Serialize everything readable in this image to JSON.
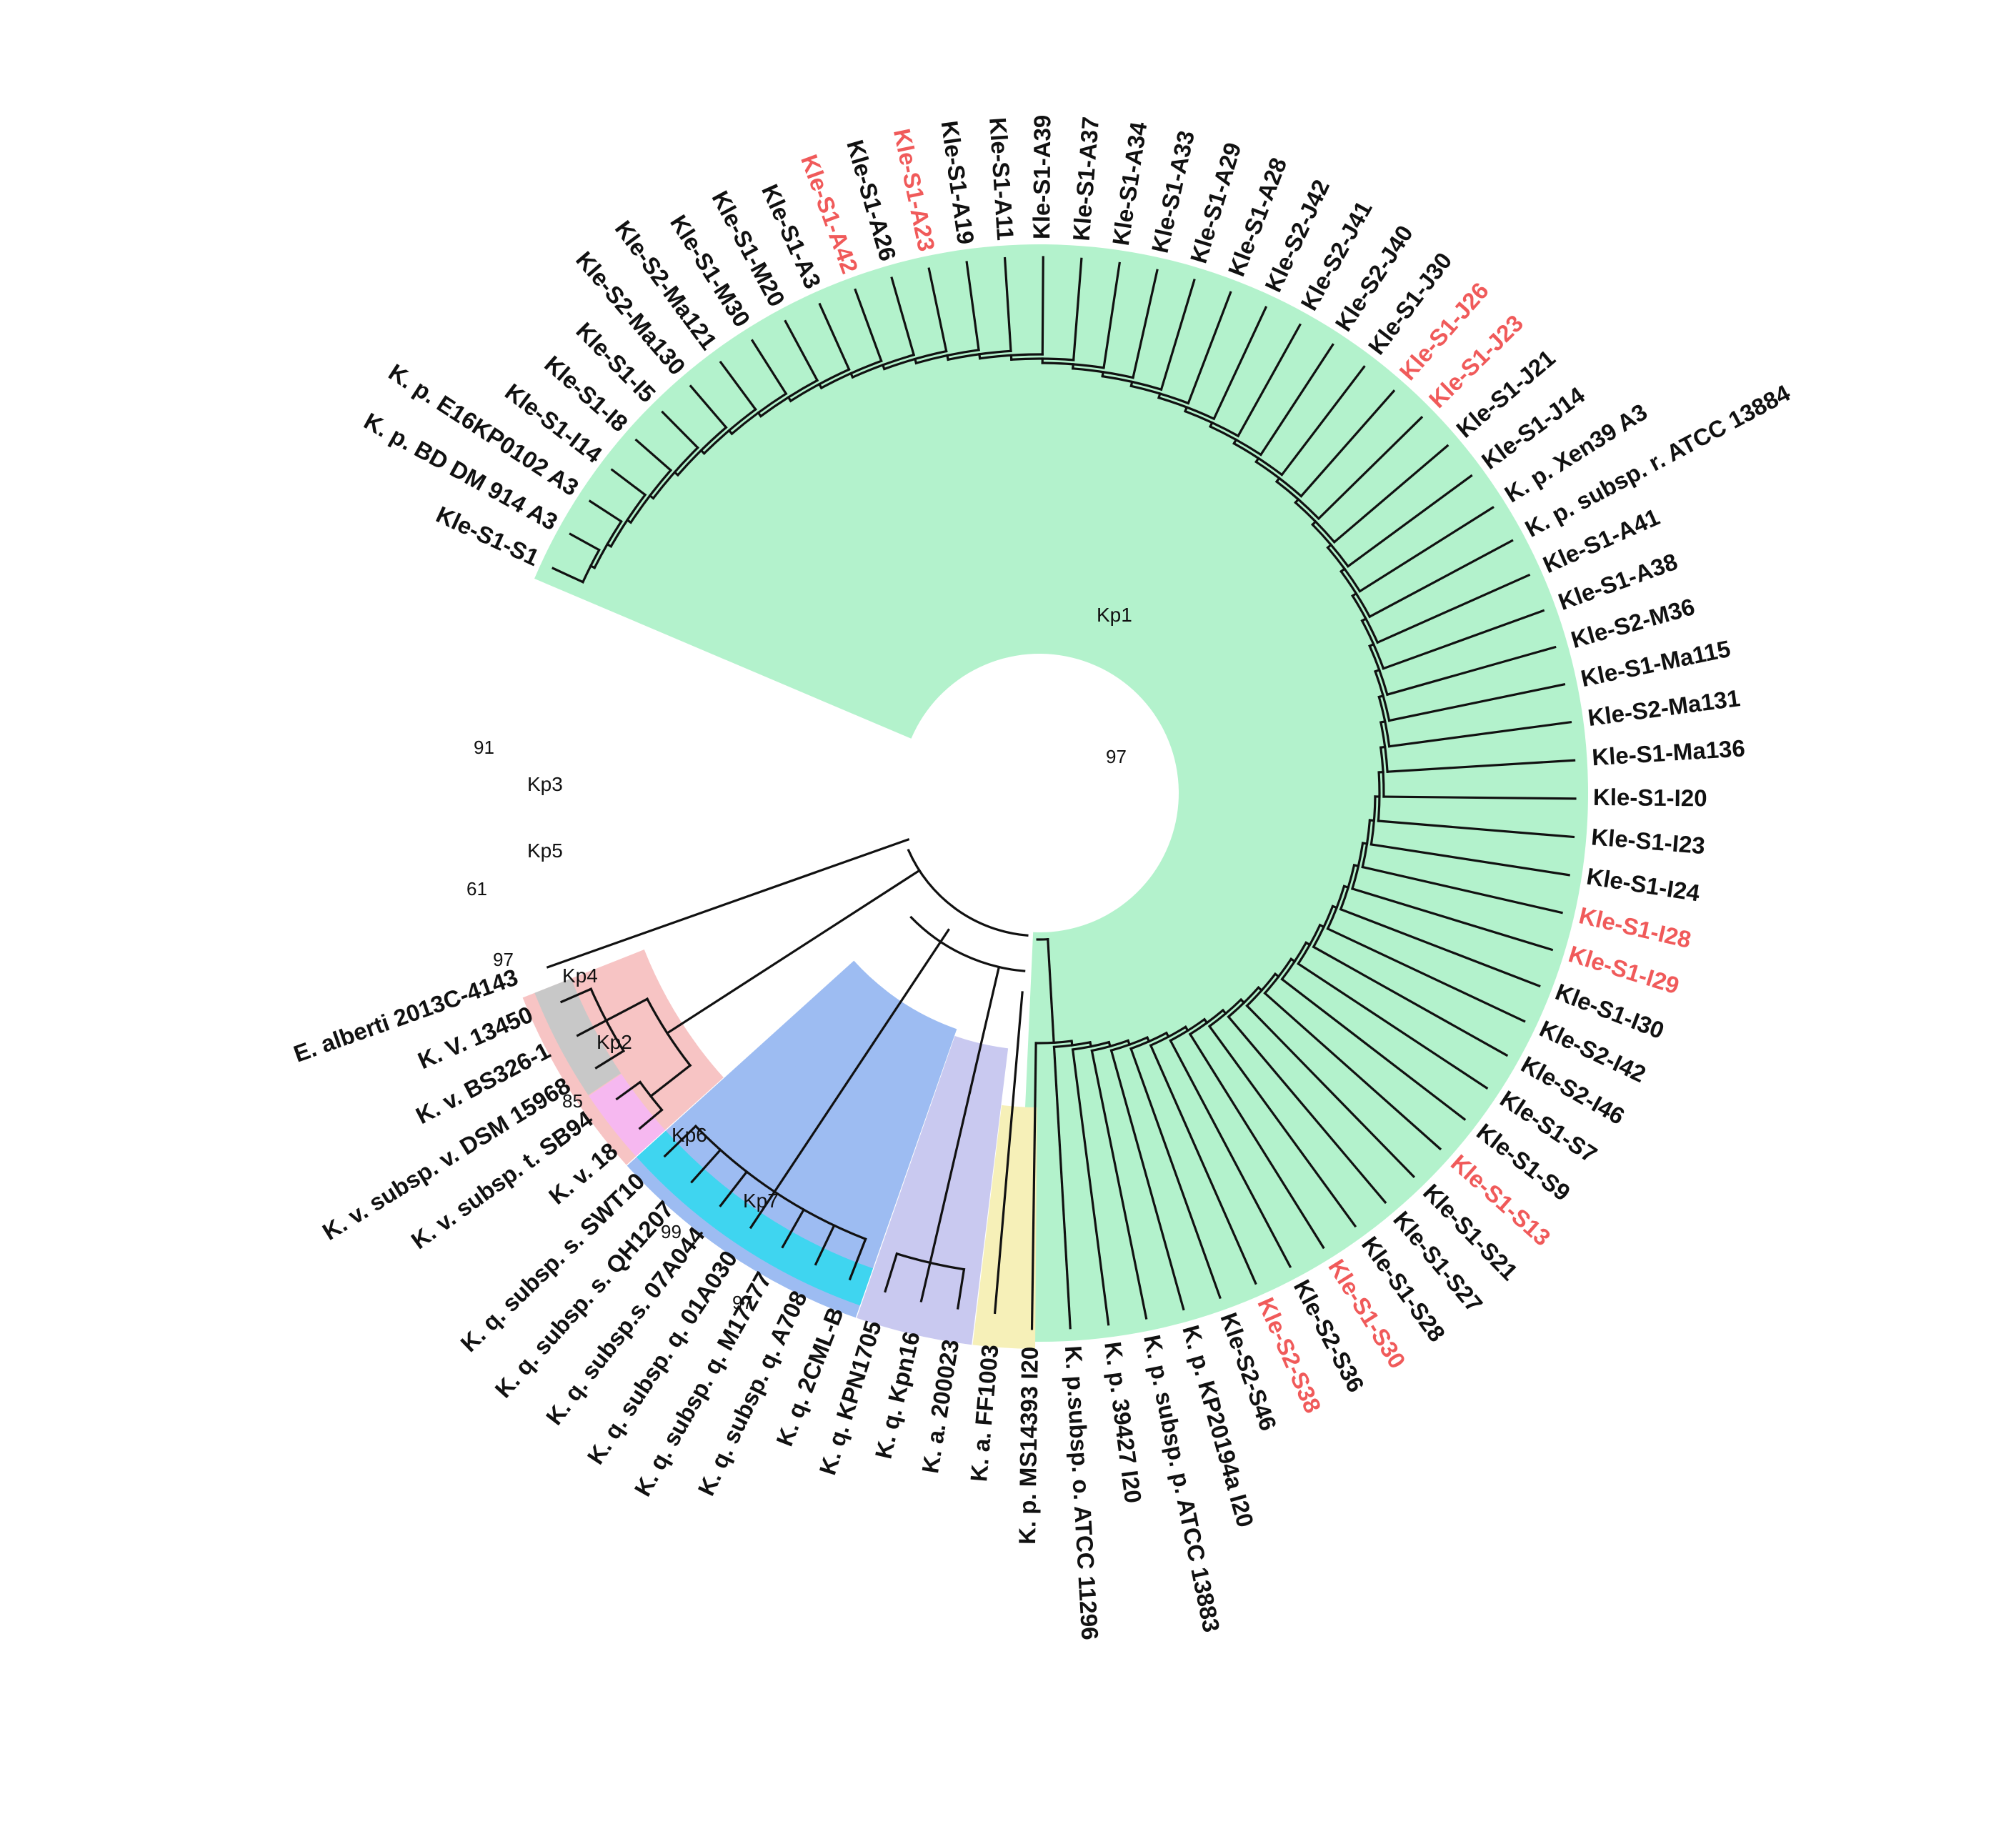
{
  "colors": {
    "highlight_text": "#f05a5a",
    "normal_text": "#111111",
    "branch": "#111111"
  },
  "clades": [
    {
      "label": "Kp1",
      "color": "#b3f2cc"
    },
    {
      "label": "Kp2",
      "color": "#9dbcf2"
    },
    {
      "label": "Kp3",
      "color": "#f7c4c4"
    },
    {
      "label": "Kp4",
      "color": "#9dbcf2"
    },
    {
      "label": "Kp5",
      "color": "#f7c4c4"
    },
    {
      "label": "Kp6",
      "color": "#c9c9f0"
    },
    {
      "label": "Kp7",
      "color": "#f6f0b8"
    }
  ],
  "bootstrap_values": [
    "97",
    "91",
    "61",
    "97",
    "85",
    "99",
    "97"
  ],
  "leaves": [
    {
      "label": "E. alberti 2013C-4143",
      "group": "outgroup",
      "highlight": false
    },
    {
      "label": "K. V. 13450",
      "group": "Kp3",
      "highlight": false
    },
    {
      "label": "K. v. BS326-1",
      "group": "Kp3",
      "highlight": false
    },
    {
      "label": "K. v. subsp. v. DSM 15968",
      "group": "Kp3",
      "highlight": false
    },
    {
      "label": "K. v. subsp. t. SB94",
      "group": "Kp5",
      "highlight": false
    },
    {
      "label": "K. v. 18",
      "group": "Kp5",
      "highlight": false
    },
    {
      "label": "K. q. subsp. s. SWT10",
      "group": "Kp4",
      "highlight": false
    },
    {
      "label": "K. q. subsp. s. QH1207",
      "group": "Kp4",
      "highlight": false
    },
    {
      "label": "K. q. subsp.s. 07A044",
      "group": "Kp2",
      "highlight": false
    },
    {
      "label": "K. q. subsp. q. 01A030",
      "group": "Kp2",
      "highlight": false
    },
    {
      "label": "K. q. subsp. q. M17277",
      "group": "Kp2",
      "highlight": false
    },
    {
      "label": "K. q. subsp. q. A708",
      "group": "Kp2",
      "highlight": false
    },
    {
      "label": "K. q. 2CML-B",
      "group": "Kp2",
      "highlight": false
    },
    {
      "label": "K. q. KPN1705",
      "group": "Kp6",
      "highlight": false
    },
    {
      "label": "K. q. Kpn16",
      "group": "Kp6",
      "highlight": false
    },
    {
      "label": "K. a. 200023",
      "group": "Kp6",
      "highlight": false
    },
    {
      "label": "K. a. FF1003",
      "group": "Kp7",
      "highlight": false
    },
    {
      "label": "K. p. MS14393 I20",
      "group": "Kp1",
      "highlight": false
    },
    {
      "label": "K. p.subsp. o. ATCC 11296",
      "group": "Kp1",
      "highlight": false
    },
    {
      "label": "K. p. 39427 I20",
      "group": "Kp1",
      "highlight": false
    },
    {
      "label": "K. p. subsp. p. ATCC 13883",
      "group": "Kp1",
      "highlight": false
    },
    {
      "label": "K. p. KP20194a I20",
      "group": "Kp1",
      "highlight": false
    },
    {
      "label": "Kle-S2-S46",
      "group": "Kp1",
      "highlight": false
    },
    {
      "label": "Kle-S2-S38",
      "group": "Kp1",
      "highlight": true
    },
    {
      "label": "Kle-S2-S36",
      "group": "Kp1",
      "highlight": false
    },
    {
      "label": "Kle-S1-S30",
      "group": "Kp1",
      "highlight": true
    },
    {
      "label": "Kle-S1-S28",
      "group": "Kp1",
      "highlight": false
    },
    {
      "label": "Kle-S1-S27",
      "group": "Kp1",
      "highlight": false
    },
    {
      "label": "Kle-S1-S21",
      "group": "Kp1",
      "highlight": false
    },
    {
      "label": "Kle-S1-S13",
      "group": "Kp1",
      "highlight": true
    },
    {
      "label": "Kle-S1-S9",
      "group": "Kp1",
      "highlight": false
    },
    {
      "label": "Kle-S1-S7",
      "group": "Kp1",
      "highlight": false
    },
    {
      "label": "Kle-S2-I46",
      "group": "Kp1",
      "highlight": false
    },
    {
      "label": "Kle-S2-I42",
      "group": "Kp1",
      "highlight": false
    },
    {
      "label": "Kle-S1-I30",
      "group": "Kp1",
      "highlight": false
    },
    {
      "label": "Kle-S1-I29",
      "group": "Kp1",
      "highlight": true
    },
    {
      "label": "Kle-S1-I28",
      "group": "Kp1",
      "highlight": true
    },
    {
      "label": "Kle-S1-I24",
      "group": "Kp1",
      "highlight": false
    },
    {
      "label": "Kle-S1-I23",
      "group": "Kp1",
      "highlight": false
    },
    {
      "label": "Kle-S1-I20",
      "group": "Kp1",
      "highlight": false
    },
    {
      "label": "Kle-S1-Ma136",
      "group": "Kp1",
      "highlight": false
    },
    {
      "label": "Kle-S2-Ma131",
      "group": "Kp1",
      "highlight": false
    },
    {
      "label": "Kle-S1-Ma115",
      "group": "Kp1",
      "highlight": false
    },
    {
      "label": "Kle-S2-M36",
      "group": "Kp1",
      "highlight": false
    },
    {
      "label": "Kle-S1-A38",
      "group": "Kp1",
      "highlight": false
    },
    {
      "label": "Kle-S1-A41",
      "group": "Kp1",
      "highlight": false
    },
    {
      "label": "K. p. subsp. r. ATCC 13884",
      "group": "Kp1",
      "highlight": false
    },
    {
      "label": "K. p. Xen39 A3",
      "group": "Kp1",
      "highlight": false
    },
    {
      "label": "Kle-S1-J14",
      "group": "Kp1",
      "highlight": false
    },
    {
      "label": "Kle-S1-J21",
      "group": "Kp1",
      "highlight": false
    },
    {
      "label": "Kle-S1-J23",
      "group": "Kp1",
      "highlight": true
    },
    {
      "label": "Kle-S1-J26",
      "group": "Kp1",
      "highlight": true
    },
    {
      "label": "Kle-S1-J30",
      "group": "Kp1",
      "highlight": false
    },
    {
      "label": "Kle-S2-J40",
      "group": "Kp1",
      "highlight": false
    },
    {
      "label": "Kle-S2-J41",
      "group": "Kp1",
      "highlight": false
    },
    {
      "label": "Kle-S2-J42",
      "group": "Kp1",
      "highlight": false
    },
    {
      "label": "Kle-S1-A28",
      "group": "Kp1",
      "highlight": false
    },
    {
      "label": "Kle-S1-A29",
      "group": "Kp1",
      "highlight": false
    },
    {
      "label": "Kle-S1-A33",
      "group": "Kp1",
      "highlight": false
    },
    {
      "label": "Kle-S1-A34",
      "group": "Kp1",
      "highlight": false
    },
    {
      "label": "Kle-S1-A37",
      "group": "Kp1",
      "highlight": false
    },
    {
      "label": "Kle-S1-A39",
      "group": "Kp1",
      "highlight": false
    },
    {
      "label": "Kle-S1-A11",
      "group": "Kp1",
      "highlight": false
    },
    {
      "label": "Kle-S1-A19",
      "group": "Kp1",
      "highlight": false
    },
    {
      "label": "Kle-S1-A23",
      "group": "Kp1",
      "highlight": true
    },
    {
      "label": "Kle-S1-A26",
      "group": "Kp1",
      "highlight": false
    },
    {
      "label": "Kle-S1-A42",
      "group": "Kp1",
      "highlight": true
    },
    {
      "label": "Kle-S1-A3",
      "group": "Kp1",
      "highlight": false
    },
    {
      "label": "Kle-S1-M20",
      "group": "Kp1",
      "highlight": false
    },
    {
      "label": "Kle-S1-M30",
      "group": "Kp1",
      "highlight": false
    },
    {
      "label": "Kle-S2-Ma121",
      "group": "Kp1",
      "highlight": false
    },
    {
      "label": "Kle-S2-Ma130",
      "group": "Kp1",
      "highlight": false
    },
    {
      "label": "Kle-S1-I5",
      "group": "Kp1",
      "highlight": false
    },
    {
      "label": "Kle-S1-I8",
      "group": "Kp1",
      "highlight": false
    },
    {
      "label": "Kle-S1-I14",
      "group": "Kp1",
      "highlight": false
    },
    {
      "label": "K. p. E16KP0102 A3",
      "group": "Kp1",
      "highlight": false
    },
    {
      "label": "K. p. BD DM 914 A3",
      "group": "Kp1",
      "highlight": false
    },
    {
      "label": "Kle-S1-S1",
      "group": "Kp1",
      "highlight": false
    }
  ]
}
